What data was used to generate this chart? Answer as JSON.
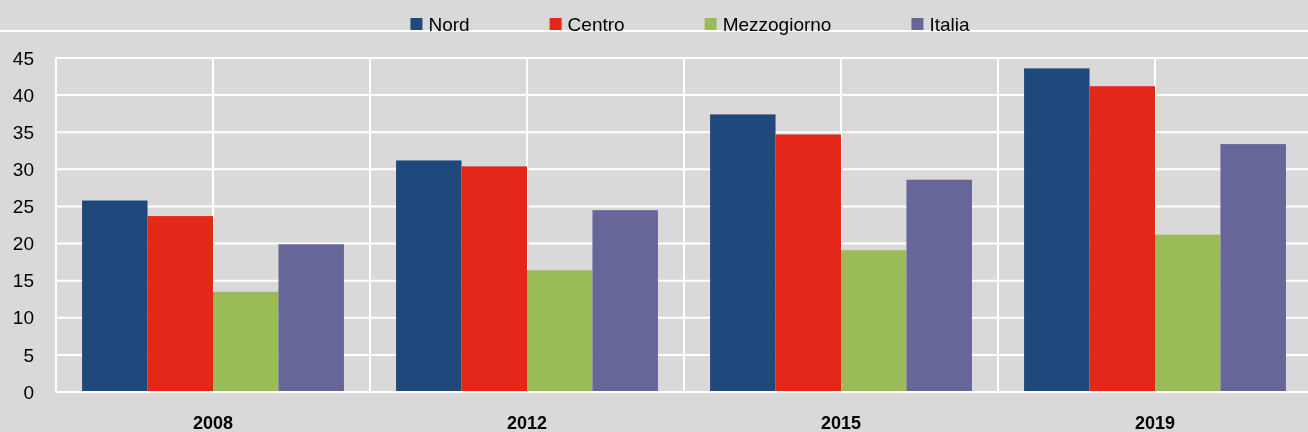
{
  "chart_data": {
    "type": "bar",
    "categories": [
      "2008",
      "2012",
      "2015",
      "2019"
    ],
    "series": [
      {
        "name": "Nord",
        "color": "#1f497d",
        "values": [
          25.8,
          31.2,
          37.4,
          43.6
        ]
      },
      {
        "name": "Centro",
        "color": "#e3281a",
        "values": [
          23.7,
          30.4,
          34.7,
          41.2
        ]
      },
      {
        "name": "Mezzogiorno",
        "color": "#9bbb59",
        "values": [
          13.5,
          16.4,
          19.1,
          21.2
        ]
      },
      {
        "name": "Italia",
        "color": "#666699",
        "values": [
          19.9,
          24.5,
          28.6,
          33.4
        ]
      }
    ],
    "ylim": [
      0,
      45
    ],
    "yticks": [
      0,
      5,
      10,
      15,
      20,
      25,
      30,
      35,
      40,
      45
    ],
    "grid": true,
    "legend": "top"
  }
}
